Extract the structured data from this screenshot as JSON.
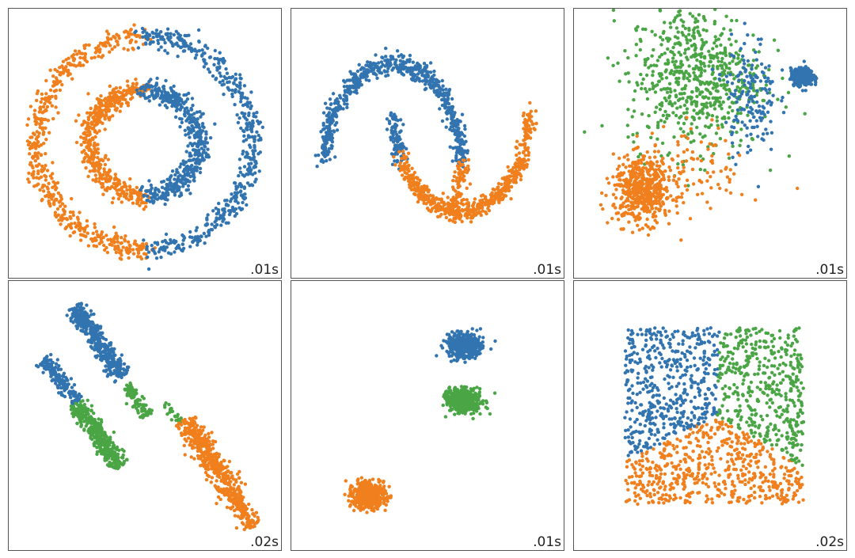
{
  "colors": {
    "blue": "#3274b0",
    "orange": "#f07f1d",
    "green": "#4aa545"
  },
  "chart_data": [
    {
      "type": "scatter",
      "shape": "circles",
      "time": ".01s",
      "xlim": [
        -1.2,
        1.2
      ],
      "ylim": [
        -1.2,
        1.2
      ],
      "clusters": [
        {
          "color": "orange",
          "kind": "ring",
          "cx": 0,
          "cy": 0,
          "r": 1.0,
          "a0": 92,
          "a1": 272,
          "noise": 0.05,
          "n": 500
        },
        {
          "color": "blue",
          "kind": "ring",
          "cx": 0,
          "cy": 0,
          "r": 1.0,
          "a0": -88,
          "a1": 92,
          "noise": 0.05,
          "n": 500
        },
        {
          "color": "orange",
          "kind": "ring",
          "cx": 0,
          "cy": 0,
          "r": 0.5,
          "a0": 92,
          "a1": 272,
          "noise": 0.05,
          "n": 500
        },
        {
          "color": "blue",
          "kind": "ring",
          "cx": 0,
          "cy": 0,
          "r": 0.5,
          "a0": -88,
          "a1": 92,
          "noise": 0.05,
          "n": 500
        }
      ]
    },
    {
      "type": "scatter",
      "shape": "moons",
      "time": ".01s",
      "xlim": [
        -1.4,
        2.4
      ],
      "ylim": [
        -1.1,
        1.5
      ],
      "clusters": [
        {
          "color": "blue",
          "kind": "arc",
          "cx": 0,
          "cy": 0,
          "r": 1.0,
          "a0": 0,
          "a1": 180,
          "noise": 0.05,
          "n": 650
        },
        {
          "color": "blue",
          "kind": "arc",
          "cx": 1,
          "cy": 0.5,
          "r": 1.0,
          "a0": 180,
          "a1": 207,
          "noise": 0.05,
          "n": 90
        },
        {
          "color": "orange",
          "kind": "arc",
          "cx": 1,
          "cy": 0.5,
          "r": 1.0,
          "a0": 207,
          "a1": 360,
          "noise": 0.05,
          "n": 560
        },
        {
          "color": "orange",
          "kind": "arc",
          "cx": 0,
          "cy": 0,
          "r": 1.0,
          "a0": -30,
          "a1": 0,
          "noise": 0.05,
          "n": 90
        }
      ]
    },
    {
      "type": "scatter",
      "shape": "varied blobs",
      "time": ".01s",
      "xlim": [
        -3.5,
        3.5
      ],
      "ylim": [
        -3.5,
        3.5
      ],
      "clusters": [
        {
          "color": "green",
          "kind": "blob",
          "cx": -0.4,
          "cy": 1.8,
          "sx": 0.9,
          "sy": 1.0,
          "n": 650
        },
        {
          "color": "blue",
          "kind": "blob",
          "cx": 2.5,
          "cy": 1.8,
          "sx": 0.15,
          "sy": 0.12,
          "n": 280
        },
        {
          "color": "blue",
          "kind": "blob",
          "cx": 1.1,
          "cy": 1.3,
          "sx": 0.35,
          "sy": 0.8,
          "n": 160
        },
        {
          "color": "orange",
          "kind": "blob",
          "cx": -1.8,
          "cy": -1.3,
          "sx": 0.4,
          "sy": 0.45,
          "n": 550
        },
        {
          "color": "orange",
          "kind": "blob",
          "cx": -0.2,
          "cy": -0.7,
          "sx": 0.6,
          "sy": 0.6,
          "n": 80
        }
      ]
    },
    {
      "type": "scatter",
      "shape": "anisotropic",
      "time": ".02s",
      "xlim": [
        -3.2,
        3.2
      ],
      "ylim": [
        -3.2,
        3.2
      ],
      "clusters": [
        {
          "color": "blue",
          "kind": "line",
          "x0": -1.75,
          "y0": 2.75,
          "x1": -0.55,
          "y1": 0.95,
          "w": 0.12,
          "n": 420
        },
        {
          "color": "blue",
          "kind": "line",
          "x0": -2.5,
          "y0": 1.4,
          "x1": -1.65,
          "y1": 0.35,
          "w": 0.1,
          "n": 170
        },
        {
          "color": "green",
          "kind": "line",
          "x0": -1.7,
          "y0": 0.3,
          "x1": -0.6,
          "y1": -1.3,
          "w": 0.12,
          "n": 380
        },
        {
          "color": "green",
          "kind": "line",
          "x0": -0.45,
          "y0": 0.75,
          "x1": 0.05,
          "y1": -0.05,
          "w": 0.08,
          "n": 100
        },
        {
          "color": "green",
          "kind": "line",
          "x0": 0.5,
          "y0": 0.3,
          "x1": 0.9,
          "y1": -0.2,
          "w": 0.06,
          "n": 25
        },
        {
          "color": "orange",
          "kind": "line",
          "x0": 1.0,
          "y0": -0.1,
          "x1": 2.7,
          "y1": -2.8,
          "w": 0.14,
          "n": 560
        }
      ]
    },
    {
      "type": "scatter",
      "shape": "blobs",
      "time": ".01s",
      "xlim": [
        -3.5,
        3.5
      ],
      "ylim": [
        -3.5,
        3.5
      ],
      "clusters": [
        {
          "color": "blue",
          "kind": "blob",
          "cx": 1.0,
          "cy": 1.9,
          "sx": 0.22,
          "sy": 0.16,
          "n": 500
        },
        {
          "color": "green",
          "kind": "blob",
          "cx": 1.0,
          "cy": 0.4,
          "sx": 0.22,
          "sy": 0.16,
          "n": 500
        },
        {
          "color": "orange",
          "kind": "blob",
          "cx": -1.6,
          "cy": -2.2,
          "sx": 0.22,
          "sy": 0.16,
          "n": 500
        }
      ]
    },
    {
      "type": "scatter",
      "shape": "uniform",
      "time": ".02s",
      "xlim": [
        -0.25,
        1.2
      ],
      "ylim": [
        -0.22,
        1.23
      ],
      "clusters": [
        {
          "color": "uniform-voronoi",
          "kind": "uniform",
          "x0": 0.0,
          "x1": 1.0,
          "y0": 0.0,
          "y1": 1.0,
          "n": 1500,
          "centers": [
            {
              "color": "blue",
              "x": 0.22,
              "y": 0.7
            },
            {
              "color": "green",
              "x": 0.82,
              "y": 0.68
            },
            {
              "color": "orange",
              "x": 0.5,
              "y": 0.15
            }
          ]
        }
      ]
    }
  ]
}
